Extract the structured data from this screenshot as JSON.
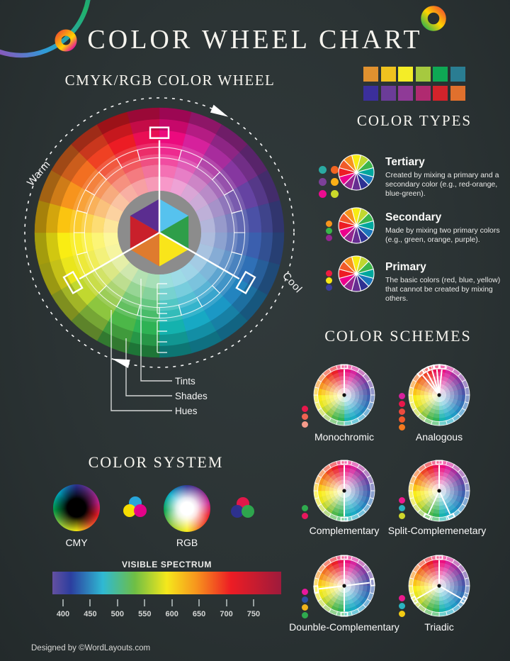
{
  "title": "COLOR WHEEL CHART",
  "footer": "Designed by ©WordLayouts.com",
  "big_wheel": {
    "heading": "CMYK/RGB COLOR WHEEL",
    "warm_label": "Warm",
    "cool_label": "Cool",
    "ring_labels": {
      "tints": "Tints",
      "shades": "Shades",
      "hues": "Hues"
    },
    "spoke_angles": [
      0,
      120,
      240
    ],
    "hues": [
      "#ec0a7e",
      "#d6219c",
      "#a82c9d",
      "#8637a0",
      "#6543a2",
      "#4b51a6",
      "#3b5fae",
      "#2f70b6",
      "#2384bf",
      "#1b98c5",
      "#17a9c4",
      "#14b2ae",
      "#2eb254",
      "#4cb748",
      "#8dc63f",
      "#c1d82f",
      "#eae61c",
      "#f9ed13",
      "#fbc410",
      "#f7941d",
      "#f26f21",
      "#ef4123",
      "#ec1c24",
      "#e90e54"
    ],
    "center_colors": [
      "#c9202b",
      "#5b2d90",
      "#56c2ee",
      "#2e9e49",
      "#f9e51a",
      "#df7b2e"
    ],
    "center_ring_color": "#8c8c8c"
  },
  "palette_swatches": [
    "#e0912f",
    "#efc21f",
    "#f4ed27",
    "#a6c93f",
    "#0ea854",
    "#2a7d92",
    "#3b2f9b",
    "#6b3c98",
    "#8f3a97",
    "#b02a70",
    "#d2232b",
    "#e0702d"
  ],
  "color_types": {
    "heading": "COLOR TYPES",
    "wheel_hues": [
      "#f7ec13",
      "#bfd730",
      "#3cb54a",
      "#00a79d",
      "#1b75bb",
      "#2e3192",
      "#662d91",
      "#92278f",
      "#ec008c",
      "#ed1c24",
      "#f15a29",
      "#f7941d"
    ],
    "items": [
      {
        "name": "Tertiary",
        "description": "Created by mixing a primary and a secondary color (e.g., red-orange, blue-green).",
        "dots": [
          "#2aa9a2",
          "#f26522",
          "#7c4099",
          "#fbaf17",
          "#ec0b8f",
          "#cada2a"
        ]
      },
      {
        "name": "Secondary",
        "description": "Made by mixing two primary colors (e.g., green, orange, purple).",
        "dots": [
          "#f7941d",
          "#39b54a",
          "#92278f"
        ]
      },
      {
        "name": "Primary",
        "description": "The basic colors (red, blue, yellow) that cannot be created by mixing others.",
        "dots": [
          "#ed1c40",
          "#f7e717",
          "#3a3e9c"
        ]
      }
    ]
  },
  "color_schemes": {
    "heading": "COLOR SCHEMES",
    "items": [
      {
        "label": "Monochromic",
        "spokes": [
          0
        ],
        "dots": [
          "#e8174b",
          "#ee6352",
          "#f59a8a"
        ]
      },
      {
        "label": "Analogous",
        "spokes": [
          -40,
          -28,
          -16,
          -5,
          6
        ],
        "dots": [
          "#d6219c",
          "#e8174b",
          "#ee4b3e",
          "#f0592c",
          "#f47a1f"
        ]
      },
      {
        "label": "Complementary",
        "spokes": [
          0,
          180
        ],
        "dots": [
          "#2faa4e",
          "#e8175d"
        ]
      },
      {
        "label": "Split-Complemenetary",
        "spokes": [
          0,
          155,
          205
        ],
        "dots": [
          "#ec1a8d",
          "#2ab3c0",
          "#cfd72b"
        ]
      },
      {
        "label": "Dounble-Complementary",
        "spokes": [
          0,
          83,
          180,
          263
        ],
        "dots": [
          "#e8179d",
          "#2b50a3",
          "#f0b31c",
          "#2faa4e"
        ]
      },
      {
        "label": "Triadic",
        "spokes": [
          0,
          120,
          240
        ],
        "dots": [
          "#ec1a8d",
          "#2ab3c0",
          "#f2cb13"
        ]
      }
    ]
  },
  "color_system": {
    "heading": "COLOR SYSTEM",
    "cmy_label": "CMY",
    "rgb_label": "RGB",
    "cmy_venn": [
      "#29abe2",
      "#ffe400",
      "#ec008c"
    ],
    "rgb_venn": [
      "#e8174b",
      "#2e3192",
      "#2faa4e"
    ]
  },
  "spectrum": {
    "label": "VISIBLE SPECTRUM",
    "ticks": [
      "400",
      "450",
      "500",
      "550",
      "600",
      "650",
      "700",
      "750"
    ]
  }
}
